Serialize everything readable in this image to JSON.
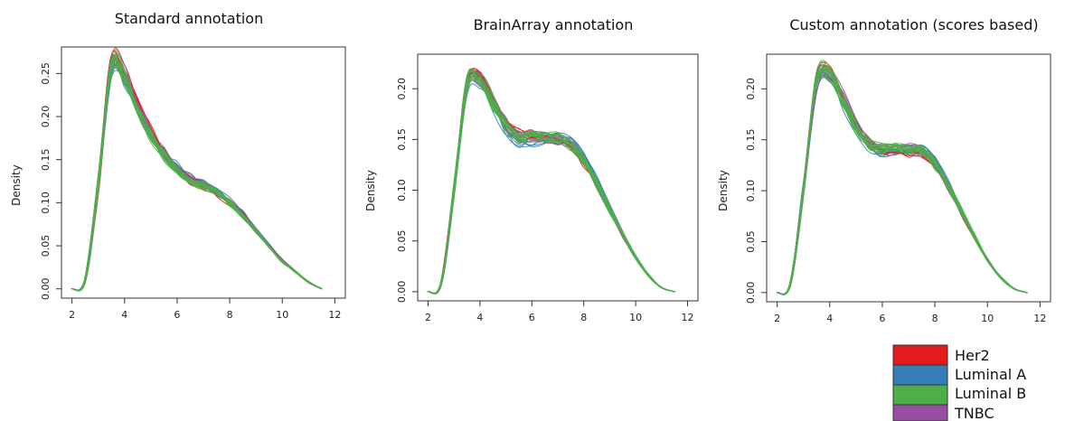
{
  "chart_data": [
    {
      "type": "line",
      "title": "Standard annotation",
      "xlabel": "",
      "ylabel": "Density",
      "xlim": [
        2,
        12
      ],
      "ylim": [
        0,
        0.27
      ],
      "x_ticks": [
        "2",
        "4",
        "6",
        "8",
        "10",
        "12"
      ],
      "y_ticks": [
        "0.00",
        "0.05",
        "0.10",
        "0.15",
        "0.20",
        "0.25"
      ],
      "x_tick_values": [
        2,
        4,
        6,
        8,
        10,
        12
      ],
      "y_tick_values": [
        0,
        0.05,
        0.1,
        0.15,
        0.2,
        0.25
      ],
      "series": [
        {
          "name": "Her2",
          "color": "#e41a1c",
          "x": [
            2.0,
            2.5,
            3.0,
            3.5,
            4.0,
            4.5,
            5.0,
            5.5,
            6.0,
            6.5,
            7.0,
            7.5,
            8.0,
            8.5,
            9.0,
            9.5,
            10.0,
            10.5,
            11.0,
            11.5
          ],
          "y": [
            0.0,
            0.01,
            0.12,
            0.262,
            0.248,
            0.212,
            0.182,
            0.158,
            0.14,
            0.127,
            0.12,
            0.112,
            0.1,
            0.085,
            0.067,
            0.049,
            0.033,
            0.02,
            0.008,
            0.0
          ]
        },
        {
          "name": "Luminal A",
          "color": "#377eb8",
          "x": [
            2.0,
            2.5,
            3.0,
            3.5,
            4.0,
            4.5,
            5.0,
            5.5,
            6.0,
            6.5,
            7.0,
            7.5,
            8.0,
            8.5,
            9.0,
            9.5,
            10.0,
            10.5,
            11.0,
            11.5
          ],
          "y": [
            0.0,
            0.01,
            0.12,
            0.255,
            0.243,
            0.21,
            0.18,
            0.158,
            0.142,
            0.13,
            0.122,
            0.115,
            0.103,
            0.087,
            0.068,
            0.05,
            0.033,
            0.02,
            0.008,
            0.0
          ]
        },
        {
          "name": "Luminal B",
          "color": "#4daf4a",
          "x": [
            2.0,
            2.5,
            3.0,
            3.5,
            4.0,
            4.5,
            5.0,
            5.5,
            6.0,
            6.5,
            7.0,
            7.5,
            8.0,
            8.5,
            9.0,
            9.5,
            10.0,
            10.5,
            11.0,
            11.5
          ],
          "y": [
            0.0,
            0.01,
            0.122,
            0.258,
            0.245,
            0.208,
            0.178,
            0.155,
            0.138,
            0.126,
            0.119,
            0.112,
            0.1,
            0.085,
            0.067,
            0.049,
            0.032,
            0.02,
            0.008,
            0.0
          ]
        },
        {
          "name": "TNBC",
          "color": "#984ea3",
          "x": [
            2.0,
            2.5,
            3.0,
            3.5,
            4.0,
            4.5,
            5.0,
            5.5,
            6.0,
            6.5,
            7.0,
            7.5,
            8.0,
            8.5,
            9.0,
            9.5,
            10.0,
            10.5,
            11.0,
            11.5
          ],
          "y": [
            0.0,
            0.01,
            0.12,
            0.26,
            0.247,
            0.211,
            0.181,
            0.157,
            0.14,
            0.128,
            0.121,
            0.113,
            0.101,
            0.086,
            0.067,
            0.049,
            0.033,
            0.02,
            0.008,
            0.0
          ]
        }
      ]
    },
    {
      "type": "line",
      "title": "BrainArray annotation",
      "xlabel": "",
      "ylabel": "Density",
      "xlim": [
        2,
        12
      ],
      "ylim": [
        0,
        0.225
      ],
      "x_ticks": [
        "2",
        "4",
        "6",
        "8",
        "10",
        "12"
      ],
      "y_ticks": [
        "0.00",
        "0.05",
        "0.10",
        "0.15",
        "0.20"
      ],
      "x_tick_values": [
        2,
        4,
        6,
        8,
        10,
        12
      ],
      "y_tick_values": [
        0,
        0.05,
        0.1,
        0.15,
        0.2
      ],
      "series": [
        {
          "name": "Her2",
          "color": "#e41a1c",
          "x": [
            2.0,
            2.5,
            3.0,
            3.5,
            4.0,
            4.5,
            5.0,
            5.5,
            6.0,
            6.5,
            7.0,
            7.5,
            8.0,
            8.5,
            9.0,
            9.5,
            10.0,
            10.5,
            11.0,
            11.5
          ],
          "y": [
            0.0,
            0.008,
            0.1,
            0.205,
            0.21,
            0.19,
            0.168,
            0.157,
            0.155,
            0.154,
            0.15,
            0.143,
            0.128,
            0.105,
            0.08,
            0.056,
            0.034,
            0.016,
            0.004,
            0.0
          ]
        },
        {
          "name": "Luminal A",
          "color": "#377eb8",
          "x": [
            2.0,
            2.5,
            3.0,
            3.5,
            4.0,
            4.5,
            5.0,
            5.5,
            6.0,
            6.5,
            7.0,
            7.5,
            8.0,
            8.5,
            9.0,
            9.5,
            10.0,
            10.5,
            11.0,
            11.5
          ],
          "y": [
            0.0,
            0.008,
            0.1,
            0.2,
            0.208,
            0.185,
            0.16,
            0.148,
            0.147,
            0.15,
            0.152,
            0.147,
            0.133,
            0.11,
            0.083,
            0.057,
            0.034,
            0.016,
            0.004,
            0.0
          ]
        },
        {
          "name": "Luminal B",
          "color": "#4daf4a",
          "x": [
            2.0,
            2.5,
            3.0,
            3.5,
            4.0,
            4.5,
            5.0,
            5.5,
            6.0,
            6.5,
            7.0,
            7.5,
            8.0,
            8.5,
            9.0,
            9.5,
            10.0,
            10.5,
            11.0,
            11.5
          ],
          "y": [
            0.0,
            0.008,
            0.1,
            0.203,
            0.207,
            0.186,
            0.163,
            0.152,
            0.152,
            0.153,
            0.151,
            0.145,
            0.13,
            0.107,
            0.081,
            0.056,
            0.034,
            0.016,
            0.004,
            0.0
          ]
        },
        {
          "name": "TNBC",
          "color": "#984ea3",
          "x": [
            2.0,
            2.5,
            3.0,
            3.5,
            4.0,
            4.5,
            5.0,
            5.5,
            6.0,
            6.5,
            7.0,
            7.5,
            8.0,
            8.5,
            9.0,
            9.5,
            10.0,
            10.5,
            11.0,
            11.5
          ],
          "y": [
            0.0,
            0.008,
            0.1,
            0.204,
            0.209,
            0.188,
            0.165,
            0.154,
            0.153,
            0.153,
            0.15,
            0.144,
            0.129,
            0.106,
            0.08,
            0.056,
            0.034,
            0.016,
            0.004,
            0.0
          ]
        }
      ]
    },
    {
      "type": "line",
      "title": "Custom annotation (scores based)",
      "xlabel": "",
      "ylabel": "Density",
      "xlim": [
        2,
        12
      ],
      "ylim": [
        0,
        0.225
      ],
      "x_ticks": [
        "2",
        "4",
        "6",
        "8",
        "10",
        "12"
      ],
      "y_ticks": [
        "0.00",
        "0.05",
        "0.10",
        "0.15",
        "0.20"
      ],
      "x_tick_values": [
        2,
        4,
        6,
        8,
        10,
        12
      ],
      "y_tick_values": [
        0,
        0.05,
        0.1,
        0.15,
        0.2
      ],
      "series": [
        {
          "name": "Her2",
          "color": "#e41a1c",
          "x": [
            2.0,
            2.5,
            3.0,
            3.5,
            4.0,
            4.5,
            5.0,
            5.5,
            6.0,
            6.5,
            7.0,
            7.5,
            8.0,
            8.5,
            9.0,
            9.5,
            10.0,
            10.5,
            11.0,
            11.5
          ],
          "y": [
            0.0,
            0.008,
            0.1,
            0.21,
            0.215,
            0.192,
            0.165,
            0.148,
            0.14,
            0.138,
            0.137,
            0.135,
            0.125,
            0.104,
            0.08,
            0.055,
            0.032,
            0.015,
            0.004,
            0.0
          ]
        },
        {
          "name": "Luminal A",
          "color": "#377eb8",
          "x": [
            2.0,
            2.5,
            3.0,
            3.5,
            4.0,
            4.5,
            5.0,
            5.5,
            6.0,
            6.5,
            7.0,
            7.5,
            8.0,
            8.5,
            9.0,
            9.5,
            10.0,
            10.5,
            11.0,
            11.5
          ],
          "y": [
            0.0,
            0.008,
            0.1,
            0.205,
            0.212,
            0.188,
            0.16,
            0.143,
            0.138,
            0.14,
            0.142,
            0.14,
            0.13,
            0.108,
            0.082,
            0.056,
            0.032,
            0.015,
            0.004,
            0.0
          ]
        },
        {
          "name": "Luminal B",
          "color": "#4daf4a",
          "x": [
            2.0,
            2.5,
            3.0,
            3.5,
            4.0,
            4.5,
            5.0,
            5.5,
            6.0,
            6.5,
            7.0,
            7.5,
            8.0,
            8.5,
            9.0,
            9.5,
            10.0,
            10.5,
            11.0,
            11.5
          ],
          "y": [
            0.0,
            0.008,
            0.1,
            0.208,
            0.213,
            0.19,
            0.163,
            0.146,
            0.141,
            0.141,
            0.141,
            0.138,
            0.127,
            0.105,
            0.081,
            0.055,
            0.032,
            0.015,
            0.004,
            0.0
          ]
        },
        {
          "name": "TNBC",
          "color": "#984ea3",
          "x": [
            2.0,
            2.5,
            3.0,
            3.5,
            4.0,
            4.5,
            5.0,
            5.5,
            6.0,
            6.5,
            7.0,
            7.5,
            8.0,
            8.5,
            9.0,
            9.5,
            10.0,
            10.5,
            11.0,
            11.5
          ],
          "y": [
            0.0,
            0.008,
            0.1,
            0.207,
            0.214,
            0.191,
            0.164,
            0.147,
            0.14,
            0.14,
            0.14,
            0.137,
            0.126,
            0.105,
            0.08,
            0.055,
            0.032,
            0.015,
            0.004,
            0.0
          ]
        }
      ]
    }
  ],
  "legend": {
    "placement": "bottom-right",
    "items": [
      {
        "label": "Her2",
        "color": "#e41a1c"
      },
      {
        "label": "Luminal A",
        "color": "#377eb8"
      },
      {
        "label": "Luminal B",
        "color": "#4daf4a"
      },
      {
        "label": "TNBC",
        "color": "#984ea3"
      }
    ]
  }
}
